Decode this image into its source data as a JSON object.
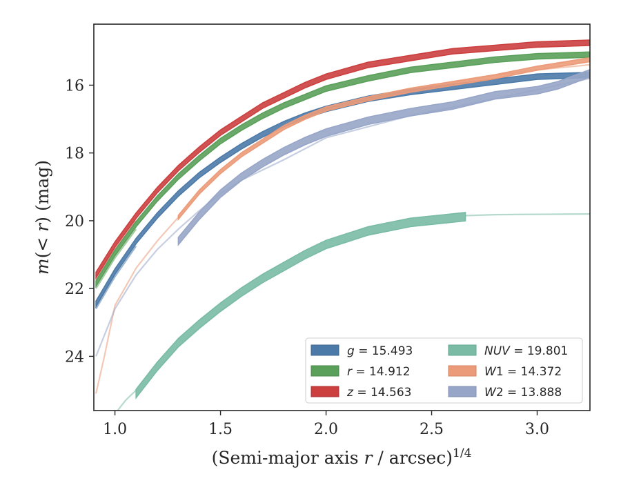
{
  "chart_data": {
    "type": "line",
    "xlabel": "(Semi-major axis r / arcsec)^1/4",
    "ylabel": "m(< r) (mag)",
    "xlim": [
      0.9,
      3.25
    ],
    "ylim": [
      25.6,
      14.2
    ],
    "y_inverted": true,
    "grid": false,
    "legend_position": "lower-right",
    "x_ticks": [
      "1.0",
      "1.5",
      "2.0",
      "2.5",
      "3.0"
    ],
    "y_ticks": [
      "16",
      "18",
      "20",
      "22",
      "24"
    ],
    "series": [
      {
        "name": "g = 15.493",
        "color": "#4c7aa8",
        "band_width": 0.16,
        "points": [
          [
            0.91,
            22.45
          ],
          [
            1.0,
            21.5
          ],
          [
            1.1,
            20.6
          ],
          [
            1.2,
            19.85
          ],
          [
            1.3,
            19.2
          ],
          [
            1.4,
            18.65
          ],
          [
            1.5,
            18.2
          ],
          [
            1.6,
            17.8
          ],
          [
            1.7,
            17.45
          ],
          [
            1.8,
            17.15
          ],
          [
            1.9,
            16.9
          ],
          [
            2.0,
            16.7
          ],
          [
            2.2,
            16.4
          ],
          [
            2.4,
            16.2
          ],
          [
            2.6,
            16.05
          ],
          [
            2.8,
            15.9
          ],
          [
            3.0,
            15.75
          ],
          [
            3.25,
            15.7
          ]
        ]
      },
      {
        "name": "r = 14.912",
        "color": "#5aa05a",
        "band_width": 0.16,
        "points": [
          [
            0.91,
            21.85
          ],
          [
            1.0,
            20.95
          ],
          [
            1.1,
            20.1
          ],
          [
            1.2,
            19.35
          ],
          [
            1.3,
            18.7
          ],
          [
            1.4,
            18.15
          ],
          [
            1.5,
            17.65
          ],
          [
            1.6,
            17.25
          ],
          [
            1.7,
            16.9
          ],
          [
            1.8,
            16.6
          ],
          [
            1.9,
            16.35
          ],
          [
            2.0,
            16.1
          ],
          [
            2.2,
            15.8
          ],
          [
            2.4,
            15.55
          ],
          [
            2.6,
            15.4
          ],
          [
            2.8,
            15.25
          ],
          [
            3.0,
            15.15
          ],
          [
            3.25,
            15.1
          ]
        ]
      },
      {
        "name": "z = 14.563",
        "color": "#cc3f3f",
        "band_width": 0.16,
        "points": [
          [
            0.91,
            21.6
          ],
          [
            1.0,
            20.7
          ],
          [
            1.1,
            19.85
          ],
          [
            1.2,
            19.1
          ],
          [
            1.3,
            18.45
          ],
          [
            1.4,
            17.9
          ],
          [
            1.5,
            17.4
          ],
          [
            1.6,
            17.0
          ],
          [
            1.7,
            16.6
          ],
          [
            1.8,
            16.3
          ],
          [
            1.9,
            16.0
          ],
          [
            2.0,
            15.75
          ],
          [
            2.2,
            15.4
          ],
          [
            2.4,
            15.2
          ],
          [
            2.6,
            15.0
          ],
          [
            2.8,
            14.9
          ],
          [
            3.0,
            14.8
          ],
          [
            3.25,
            14.75
          ]
        ]
      },
      {
        "name": "NUV = 19.801",
        "color": "#79bba4",
        "band_width": 0.25,
        "points": [
          [
            1.1,
            25.1
          ],
          [
            1.2,
            24.3
          ],
          [
            1.3,
            23.6
          ],
          [
            1.4,
            23.05
          ],
          [
            1.5,
            22.55
          ],
          [
            1.6,
            22.1
          ],
          [
            1.7,
            21.7
          ],
          [
            1.8,
            21.35
          ],
          [
            1.9,
            21.0
          ],
          [
            2.0,
            20.7
          ],
          [
            2.2,
            20.3
          ],
          [
            2.4,
            20.05
          ],
          [
            2.66,
            19.88
          ]
        ]
      },
      {
        "name": "W1 = 14.372",
        "color": "#eb9b79",
        "band_width": 0.12,
        "points": [
          [
            1.3,
            19.9
          ],
          [
            1.4,
            19.15
          ],
          [
            1.5,
            18.55
          ],
          [
            1.6,
            18.05
          ],
          [
            1.7,
            17.65
          ],
          [
            1.8,
            17.25
          ],
          [
            1.9,
            16.95
          ],
          [
            2.0,
            16.7
          ],
          [
            2.2,
            16.4
          ],
          [
            2.4,
            16.15
          ],
          [
            2.6,
            15.95
          ],
          [
            2.8,
            15.75
          ],
          [
            3.0,
            15.5
          ],
          [
            3.25,
            15.25
          ]
        ]
      },
      {
        "name": "W2 = 13.888",
        "color": "#97a6c8",
        "band_width": 0.22,
        "points": [
          [
            1.3,
            20.6
          ],
          [
            1.4,
            19.85
          ],
          [
            1.5,
            19.2
          ],
          [
            1.6,
            18.7
          ],
          [
            1.7,
            18.3
          ],
          [
            1.8,
            17.95
          ],
          [
            1.9,
            17.65
          ],
          [
            2.0,
            17.4
          ],
          [
            2.2,
            17.05
          ],
          [
            2.4,
            16.8
          ],
          [
            2.6,
            16.6
          ],
          [
            2.8,
            16.3
          ],
          [
            3.0,
            16.15
          ],
          [
            3.1,
            16.0
          ],
          [
            3.25,
            15.65
          ]
        ]
      }
    ],
    "extrapolations": [
      {
        "name_ref": "g",
        "color": "#4c7aa8",
        "points": [
          [
            0.91,
            22.6
          ],
          [
            1.0,
            21.65
          ],
          [
            1.1,
            20.75
          ]
        ]
      },
      {
        "name_ref": "r",
        "color": "#5aa05a",
        "points": [
          [
            0.91,
            22.0
          ],
          [
            1.0,
            21.1
          ],
          [
            1.1,
            20.25
          ]
        ]
      },
      {
        "name_ref": "z",
        "color": "#cc3f3f",
        "points": [
          [
            0.91,
            21.75
          ],
          [
            1.0,
            20.85
          ],
          [
            1.1,
            20.0
          ]
        ]
      },
      {
        "name_ref": "NUV",
        "color": "#79bba4",
        "points": [
          [
            0.97,
            26.0
          ],
          [
            1.0,
            25.7
          ],
          [
            1.05,
            25.3
          ],
          [
            1.1,
            25.0
          ]
        ]
      },
      {
        "name_ref": "NUV",
        "color": "#79bba4",
        "points": [
          [
            2.66,
            19.85
          ],
          [
            2.8,
            19.82
          ],
          [
            3.0,
            19.81
          ],
          [
            3.25,
            19.8
          ]
        ]
      },
      {
        "name_ref": "W1",
        "color": "#eb9b79",
        "points": [
          [
            0.91,
            25.1
          ],
          [
            0.95,
            24.0
          ],
          [
            1.0,
            22.5
          ],
          [
            1.1,
            21.4
          ],
          [
            1.2,
            20.6
          ],
          [
            1.3,
            19.9
          ]
        ]
      },
      {
        "name_ref": "W1",
        "color": "#eb9b79",
        "points": [
          [
            2.0,
            16.65
          ],
          [
            2.4,
            16.15
          ],
          [
            2.8,
            15.7
          ],
          [
            3.0,
            15.55
          ],
          [
            3.25,
            15.4
          ]
        ]
      },
      {
        "name_ref": "W2",
        "color": "#97a6c8",
        "points": [
          [
            0.91,
            24.0
          ],
          [
            1.0,
            22.6
          ],
          [
            1.1,
            21.6
          ],
          [
            1.2,
            20.85
          ],
          [
            1.3,
            20.25
          ],
          [
            1.4,
            19.7
          ],
          [
            1.5,
            19.2
          ],
          [
            1.6,
            18.8
          ],
          [
            1.8,
            18.2
          ],
          [
            2.0,
            17.55
          ],
          [
            2.4,
            16.9
          ],
          [
            2.8,
            16.4
          ],
          [
            3.25,
            15.8
          ]
        ]
      }
    ]
  }
}
